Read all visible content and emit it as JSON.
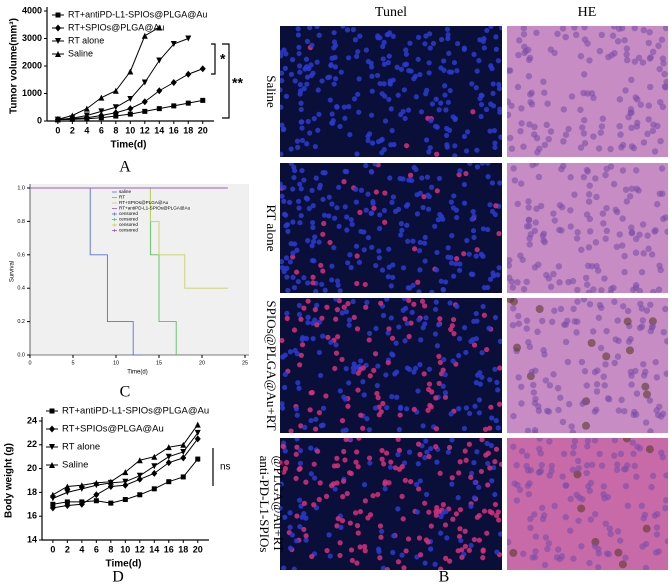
{
  "chart_data": [
    {
      "type": "line",
      "ylabel": "Tumor volume(mm³)",
      "xlabel": "Time(d)",
      "x": [
        0,
        2,
        4,
        6,
        8,
        10,
        12,
        14,
        16,
        18,
        20
      ],
      "xlim": [
        -1.5,
        21
      ],
      "xticks": [
        0,
        2,
        4,
        6,
        8,
        10,
        12,
        14,
        16,
        18,
        20
      ],
      "ylim": [
        0,
        4000
      ],
      "yticks": [
        0,
        1000,
        2000,
        3000,
        4000
      ],
      "series": [
        {
          "name": "RT+antiPD-L1-SPIOs@PLGA@Au",
          "marker": "square",
          "color": "#000000",
          "values": [
            50,
            60,
            80,
            120,
            180,
            250,
            350,
            450,
            550,
            650,
            750
          ]
        },
        {
          "name": "RT+SPIOs@PLGA@Au",
          "marker": "diamond",
          "color": "#000000",
          "values": [
            50,
            80,
            120,
            200,
            300,
            450,
            700,
            1100,
            1400,
            1700,
            1900
          ]
        },
        {
          "name": "RT alone",
          "marker": "down",
          "color": "#000000",
          "values": [
            50,
            100,
            200,
            350,
            500,
            800,
            1400,
            2200,
            2800,
            3000,
            null
          ]
        },
        {
          "name": "Saline",
          "marker": "up",
          "color": "#000000",
          "values": [
            60,
            200,
            450,
            850,
            1100,
            1800,
            3100,
            3400,
            null,
            null,
            null
          ]
        }
      ],
      "annotations": [
        "*",
        "**"
      ]
    },
    {
      "type": "step",
      "ylabel": "Survival",
      "xlabel": "Time(d)",
      "xlim": [
        0,
        25
      ],
      "xticks": [
        0,
        5,
        10,
        15,
        20,
        25
      ],
      "ylim": [
        0,
        1
      ],
      "yticks": [
        {
          "value": 0,
          "label": "0.0"
        },
        {
          "value": 0.2,
          "label": "0.2"
        },
        {
          "value": 0.4,
          "label": "0.4"
        },
        {
          "value": 0.6,
          "label": "0.6"
        },
        {
          "value": 0.8,
          "label": "0.8"
        },
        {
          "value": 1,
          "label": "1.0"
        }
      ],
      "series": [
        {
          "name": "saline",
          "color": "#5b6fd6",
          "x": [
            0,
            7,
            9,
            12,
            13
          ],
          "values": [
            1,
            0.6,
            0.2,
            0,
            0
          ]
        },
        {
          "name": "RT",
          "color": "#5cc05c",
          "x": [
            0,
            14,
            15,
            17,
            17
          ],
          "values": [
            1,
            0.6,
            0.2,
            0,
            0
          ]
        },
        {
          "name": "RT+SPIOs@PLGA@Au",
          "color": "#c8d060",
          "x": [
            0,
            14,
            15,
            18,
            23
          ],
          "values": [
            1,
            0.8,
            0.6,
            0.4,
            0.4
          ]
        },
        {
          "name": "RT+antiPD-L1-SPIOs@PLGA@Au",
          "color": "#9b59c8",
          "x": [
            0,
            23
          ],
          "values": [
            1,
            1
          ]
        }
      ],
      "censored": [
        {
          "name": "censored",
          "color": "#5b6fd6"
        },
        {
          "name": "censored",
          "color": "#5cc05c"
        },
        {
          "name": "censored",
          "color": "#c8d060"
        },
        {
          "name": "censored",
          "color": "#9b59c8"
        }
      ]
    },
    {
      "type": "line",
      "ylabel": "Body weight (g)",
      "xlabel": "Time(d)",
      "x": [
        0,
        2,
        4,
        6,
        8,
        10,
        12,
        14,
        16,
        18,
        20
      ],
      "xlim": [
        -1.5,
        21
      ],
      "xticks": [
        0,
        2,
        4,
        6,
        8,
        10,
        12,
        14,
        16,
        18,
        20
      ],
      "ylim": [
        14,
        24
      ],
      "yticks": [
        14,
        16,
        18,
        20,
        22,
        24
      ],
      "series": [
        {
          "name": "RT+antiPD-L1-SPIOs@PLGA@Au",
          "marker": "square",
          "color": "#000000",
          "values": [
            17,
            17.2,
            17.2,
            17.3,
            17.1,
            17.4,
            17.8,
            18.3,
            18.9,
            19.3,
            20.8
          ]
        },
        {
          "name": "RT+SPIOs@PLGA@Au",
          "marker": "diamond",
          "color": "#000000",
          "values": [
            16.7,
            16.9,
            17,
            17.8,
            18.5,
            18.6,
            19.1,
            19.6,
            20.5,
            20.9,
            22.5
          ]
        },
        {
          "name": "RT alone",
          "marker": "down",
          "color": "#000000",
          "values": [
            17.5,
            18,
            18.3,
            18.6,
            18.8,
            18.9,
            19.4,
            20.2,
            21,
            21.4,
            23
          ]
        },
        {
          "name": "Saline",
          "marker": "up",
          "color": "#000000",
          "values": [
            17.8,
            18.5,
            18.6,
            18.8,
            18.9,
            19.7,
            20.7,
            21,
            21.8,
            22,
            23.7
          ]
        }
      ],
      "annotations": [
        "ns"
      ]
    }
  ],
  "panels": {
    "A": "A",
    "B": "B",
    "C": "C",
    "D": "D"
  },
  "images": {
    "columns": [
      "Tunel",
      "HE"
    ],
    "rows": [
      [
        "Saline"
      ],
      [
        "RT alone"
      ],
      [
        "SPIOs@PLGA@Au+RT"
      ],
      [
        "anti-PD-L1-SPIOs",
        "@PLGA@Au+RT"
      ]
    ]
  }
}
